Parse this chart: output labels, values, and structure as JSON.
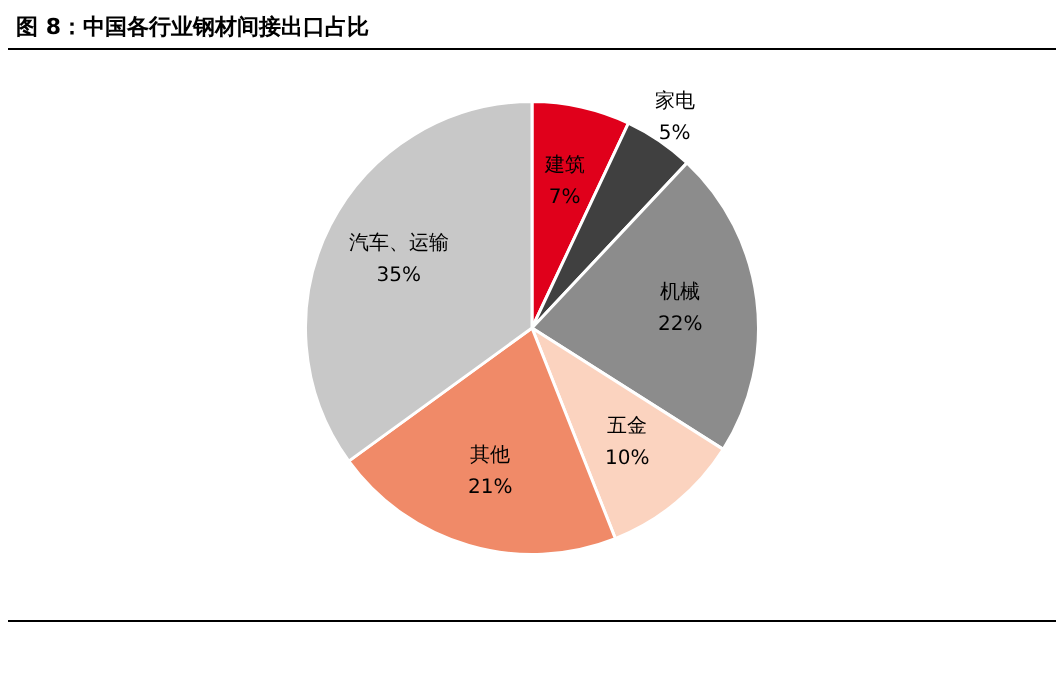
{
  "chart_data": {
    "type": "pie",
    "title": "图 8：中国各行业钢材间接出口占比",
    "categories": [
      "建筑",
      "家电",
      "机械",
      "五金",
      "其他",
      "汽车、运输"
    ],
    "values": [
      7,
      5,
      22,
      10,
      21,
      35
    ],
    "value_labels": [
      "7%",
      "5%",
      "22%",
      "10%",
      "21%",
      "35%"
    ],
    "colors": [
      "#e0001b",
      "#404040",
      "#8c8c8c",
      "#fbd3bf",
      "#f08a68",
      "#c8c8c8"
    ],
    "legend": false
  }
}
